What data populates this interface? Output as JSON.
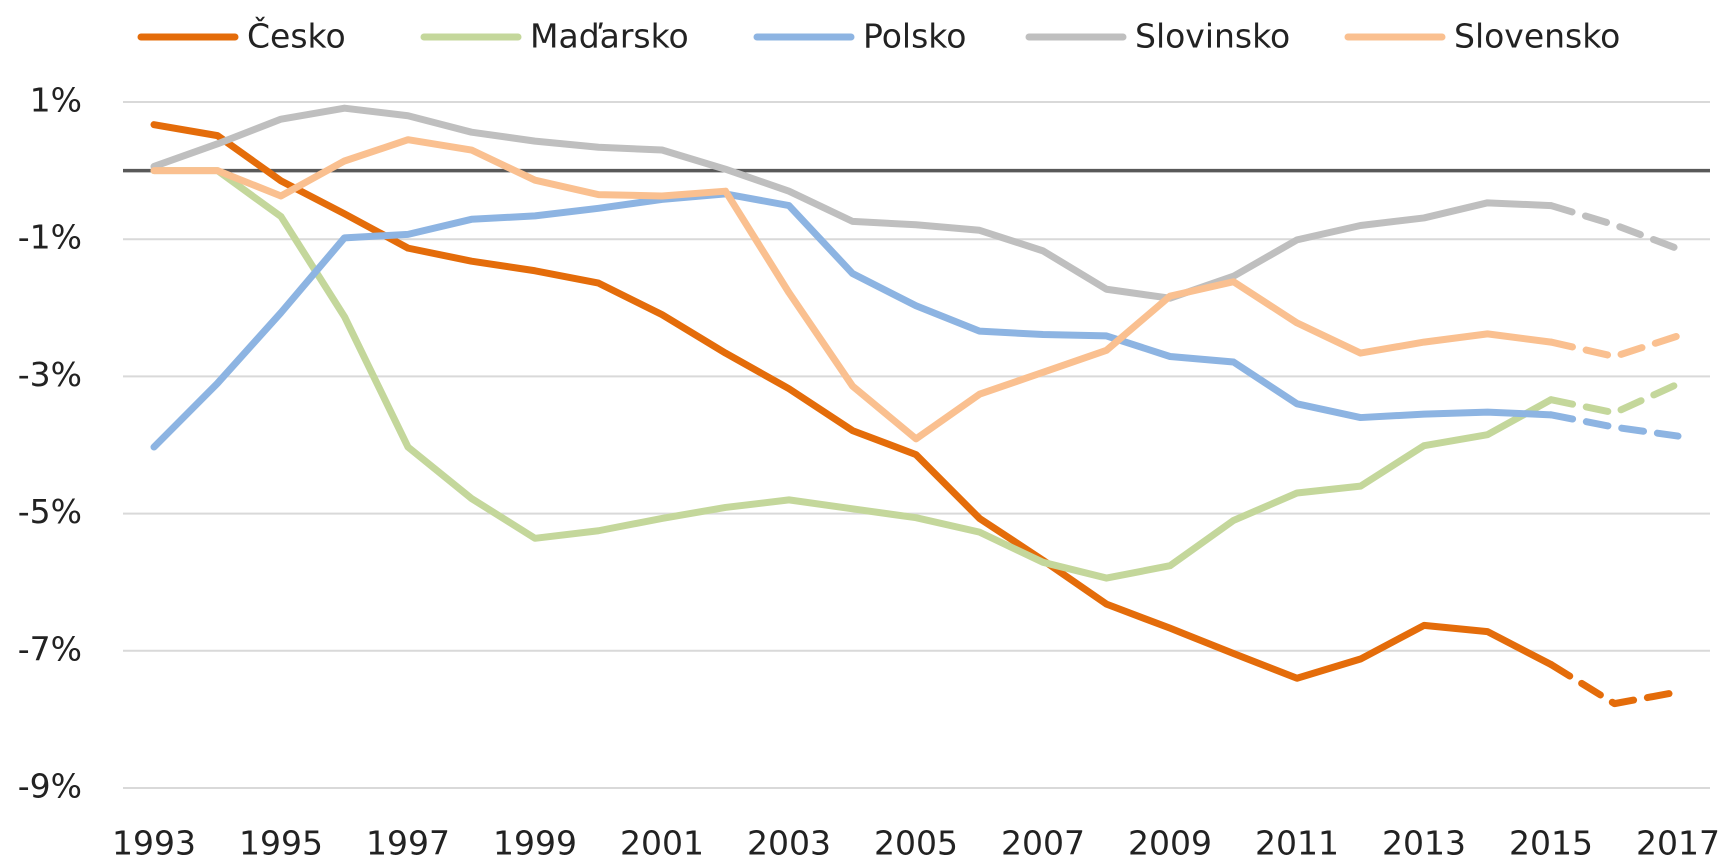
{
  "chart_data": {
    "type": "line",
    "x": [
      1993,
      1994,
      1995,
      1996,
      1997,
      1998,
      1999,
      2000,
      2001,
      2002,
      2003,
      2004,
      2005,
      2006,
      2007,
      2008,
      2009,
      2010,
      2011,
      2012,
      2013,
      2014,
      2015,
      2016,
      2017
    ],
    "xlim": [
      1993,
      2017
    ],
    "xticks": [
      1993,
      1995,
      1997,
      1999,
      2001,
      2003,
      2005,
      2007,
      2009,
      2011,
      2013,
      2015,
      2017
    ],
    "ylim": [
      -9,
      1
    ],
    "yticks": [
      {
        "value": -9,
        "label": "-9%"
      },
      {
        "value": -7,
        "label": "-7%"
      },
      {
        "value": -5,
        "label": "-5%"
      },
      {
        "value": -3,
        "label": "-3%"
      },
      {
        "value": -1,
        "label": "-1%"
      },
      {
        "value": 1,
        "label": "1%"
      }
    ],
    "grid": true,
    "legend": "top",
    "dashed_from": 2015,
    "series": [
      {
        "name": "Česko",
        "color": "#e46c0a",
        "values": [
          0.67,
          0.51,
          -0.15,
          -0.63,
          -1.13,
          -1.32,
          -1.46,
          -1.64,
          -2.1,
          -2.66,
          -3.18,
          -3.79,
          -4.14,
          -5.07,
          -5.68,
          -6.32,
          -6.67,
          -7.04,
          -7.4,
          -7.12,
          -6.63,
          -6.72,
          -7.2,
          -7.77,
          -7.6
        ]
      },
      {
        "name": "Maďarsko",
        "color": "#c4d79b",
        "values": [
          0,
          0,
          -0.67,
          -2.13,
          -4.03,
          -4.78,
          -5.36,
          -5.25,
          -5.07,
          -4.91,
          -4.8,
          -4.93,
          -5.06,
          -5.27,
          -5.71,
          -5.94,
          -5.76,
          -5.1,
          -4.7,
          -4.6,
          -4.01,
          -3.85,
          -3.34,
          -3.53,
          -3.11
        ]
      },
      {
        "name": "Polsko",
        "color": "#8db4e2",
        "values": [
          -4.03,
          -3.1,
          -2.07,
          -0.98,
          -0.93,
          -0.71,
          -0.66,
          -0.55,
          -0.42,
          -0.34,
          -0.51,
          -1.5,
          -1.97,
          -2.34,
          -2.39,
          -2.41,
          -2.71,
          -2.79,
          -3.4,
          -3.6,
          -3.55,
          -3.52,
          -3.56,
          -3.74,
          -3.87
        ]
      },
      {
        "name": "Slovinsko",
        "color": "#bfbfbf",
        "values": [
          0.06,
          0.39,
          0.75,
          0.91,
          0.8,
          0.56,
          0.43,
          0.34,
          0.3,
          0.02,
          -0.3,
          -0.74,
          -0.79,
          -0.87,
          -1.17,
          -1.73,
          -1.86,
          -1.54,
          -1.01,
          -0.8,
          -0.69,
          -0.47,
          -0.51,
          -0.79,
          -1.14
        ]
      },
      {
        "name": "Slovensko",
        "color": "#fac090",
        "values": [
          0,
          0,
          -0.37,
          0.14,
          0.45,
          0.3,
          -0.14,
          -0.35,
          -0.37,
          -0.3,
          -1.78,
          -3.14,
          -3.91,
          -3.26,
          -2.94,
          -2.62,
          -1.83,
          -1.62,
          -2.22,
          -2.66,
          -2.5,
          -2.38,
          -2.5,
          -2.71,
          -2.41
        ]
      }
    ]
  }
}
